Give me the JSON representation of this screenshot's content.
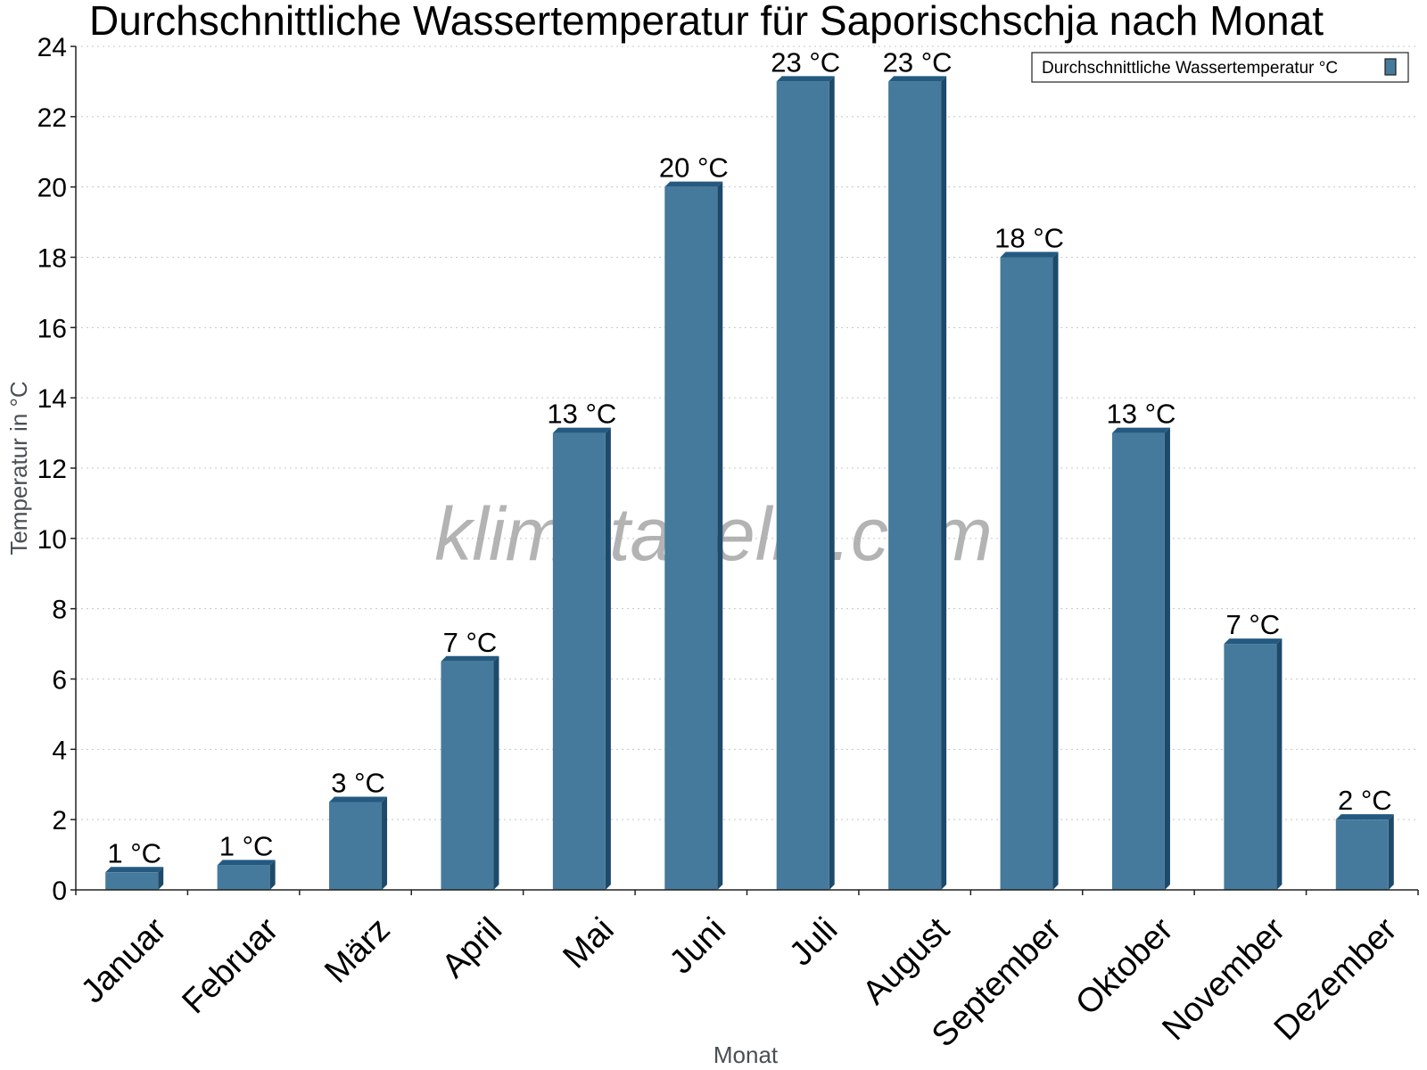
{
  "title": "Durchschnittliche Wassertemperatur für Saporischschja nach Monat",
  "watermark": "klimatabelle.com",
  "colors": {
    "bar_face": "#457a9c",
    "bar_side": "#1d4a6b",
    "bar_top": "#255a80",
    "legend_swatch": "#457a9c"
  },
  "chart_data": {
    "type": "bar",
    "title": "Durchschnittliche Wassertemperatur für Saporischschja nach Monat",
    "xlabel": "Monat",
    "ylabel": "Temperatur in °C",
    "ylim": [
      0,
      24
    ],
    "yticks": [
      0,
      2,
      4,
      6,
      8,
      10,
      12,
      14,
      16,
      18,
      20,
      22,
      24
    ],
    "grid": true,
    "legend_position": "top-right",
    "categories": [
      "Januar",
      "Februar",
      "März",
      "April",
      "Mai",
      "Juni",
      "Juli",
      "August",
      "September",
      "Oktober",
      "November",
      "Dezember"
    ],
    "series": [
      {
        "name": "Durchschnittliche Wassertemperatur °C",
        "values": [
          0.5,
          0.7,
          2.5,
          6.5,
          13,
          20,
          23,
          23,
          18,
          13,
          7,
          2
        ],
        "labels": [
          "1 °C",
          "1 °C",
          "3 °C",
          "7 °C",
          "13 °C",
          "20 °C",
          "23 °C",
          "23 °C",
          "18 °C",
          "13 °C",
          "7 °C",
          "2 °C"
        ]
      }
    ]
  }
}
